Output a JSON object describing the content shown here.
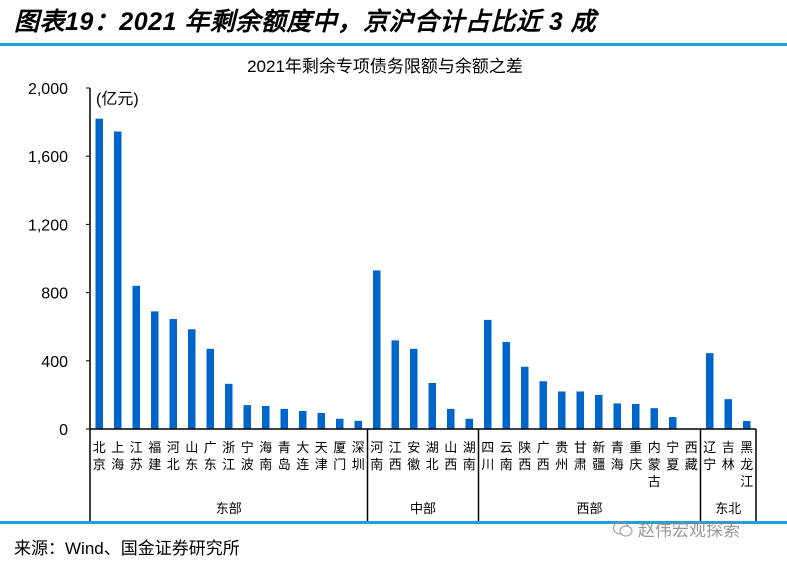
{
  "figure_title": "图表19：2021 年剩余额度中，京沪合计占比近 3 成",
  "source": "来源：Wind、国金证券研究所",
  "watermark": "赵伟宏观探索",
  "colors": {
    "bar": "#0066cc",
    "rule": "#1ea0dc"
  },
  "chart_data": {
    "type": "bar",
    "title": "2021年剩余专项债务限额与余额之差",
    "unit_label": "(亿元)",
    "ylim": [
      0,
      2000
    ],
    "yticks": [
      0,
      400,
      800,
      1200,
      1600,
      2000
    ],
    "ytick_labels": [
      "0",
      "400",
      "800",
      "1,200",
      "1,600",
      "2,000"
    ],
    "categories": [
      "北京",
      "上海",
      "江苏",
      "福建",
      "河北",
      "山东",
      "广东",
      "浙江",
      "宁波",
      "海南",
      "青岛",
      "大连",
      "天津",
      "厦门",
      "深圳",
      "河南",
      "江西",
      "安徽",
      "湖北",
      "山西",
      "湖南",
      "四川",
      "云南",
      "陕西",
      "广西",
      "贵州",
      "甘肃",
      "新疆",
      "青海",
      "重庆",
      "内蒙古",
      "宁夏",
      "西藏",
      "辽宁",
      "吉林",
      "黑龙江"
    ],
    "values": [
      1820,
      1745,
      840,
      690,
      645,
      585,
      470,
      265,
      140,
      135,
      118,
      106,
      94,
      60,
      48,
      930,
      520,
      470,
      270,
      118,
      60,
      640,
      510,
      365,
      280,
      220,
      220,
      200,
      150,
      147,
      122,
      70,
      3,
      445,
      175,
      47
    ],
    "groups": [
      {
        "name": "东部",
        "count": 15
      },
      {
        "name": "中部",
        "count": 6
      },
      {
        "name": "西部",
        "count": 12
      },
      {
        "name": "东北",
        "count": 3
      }
    ],
    "grid": false,
    "legend": "none"
  }
}
